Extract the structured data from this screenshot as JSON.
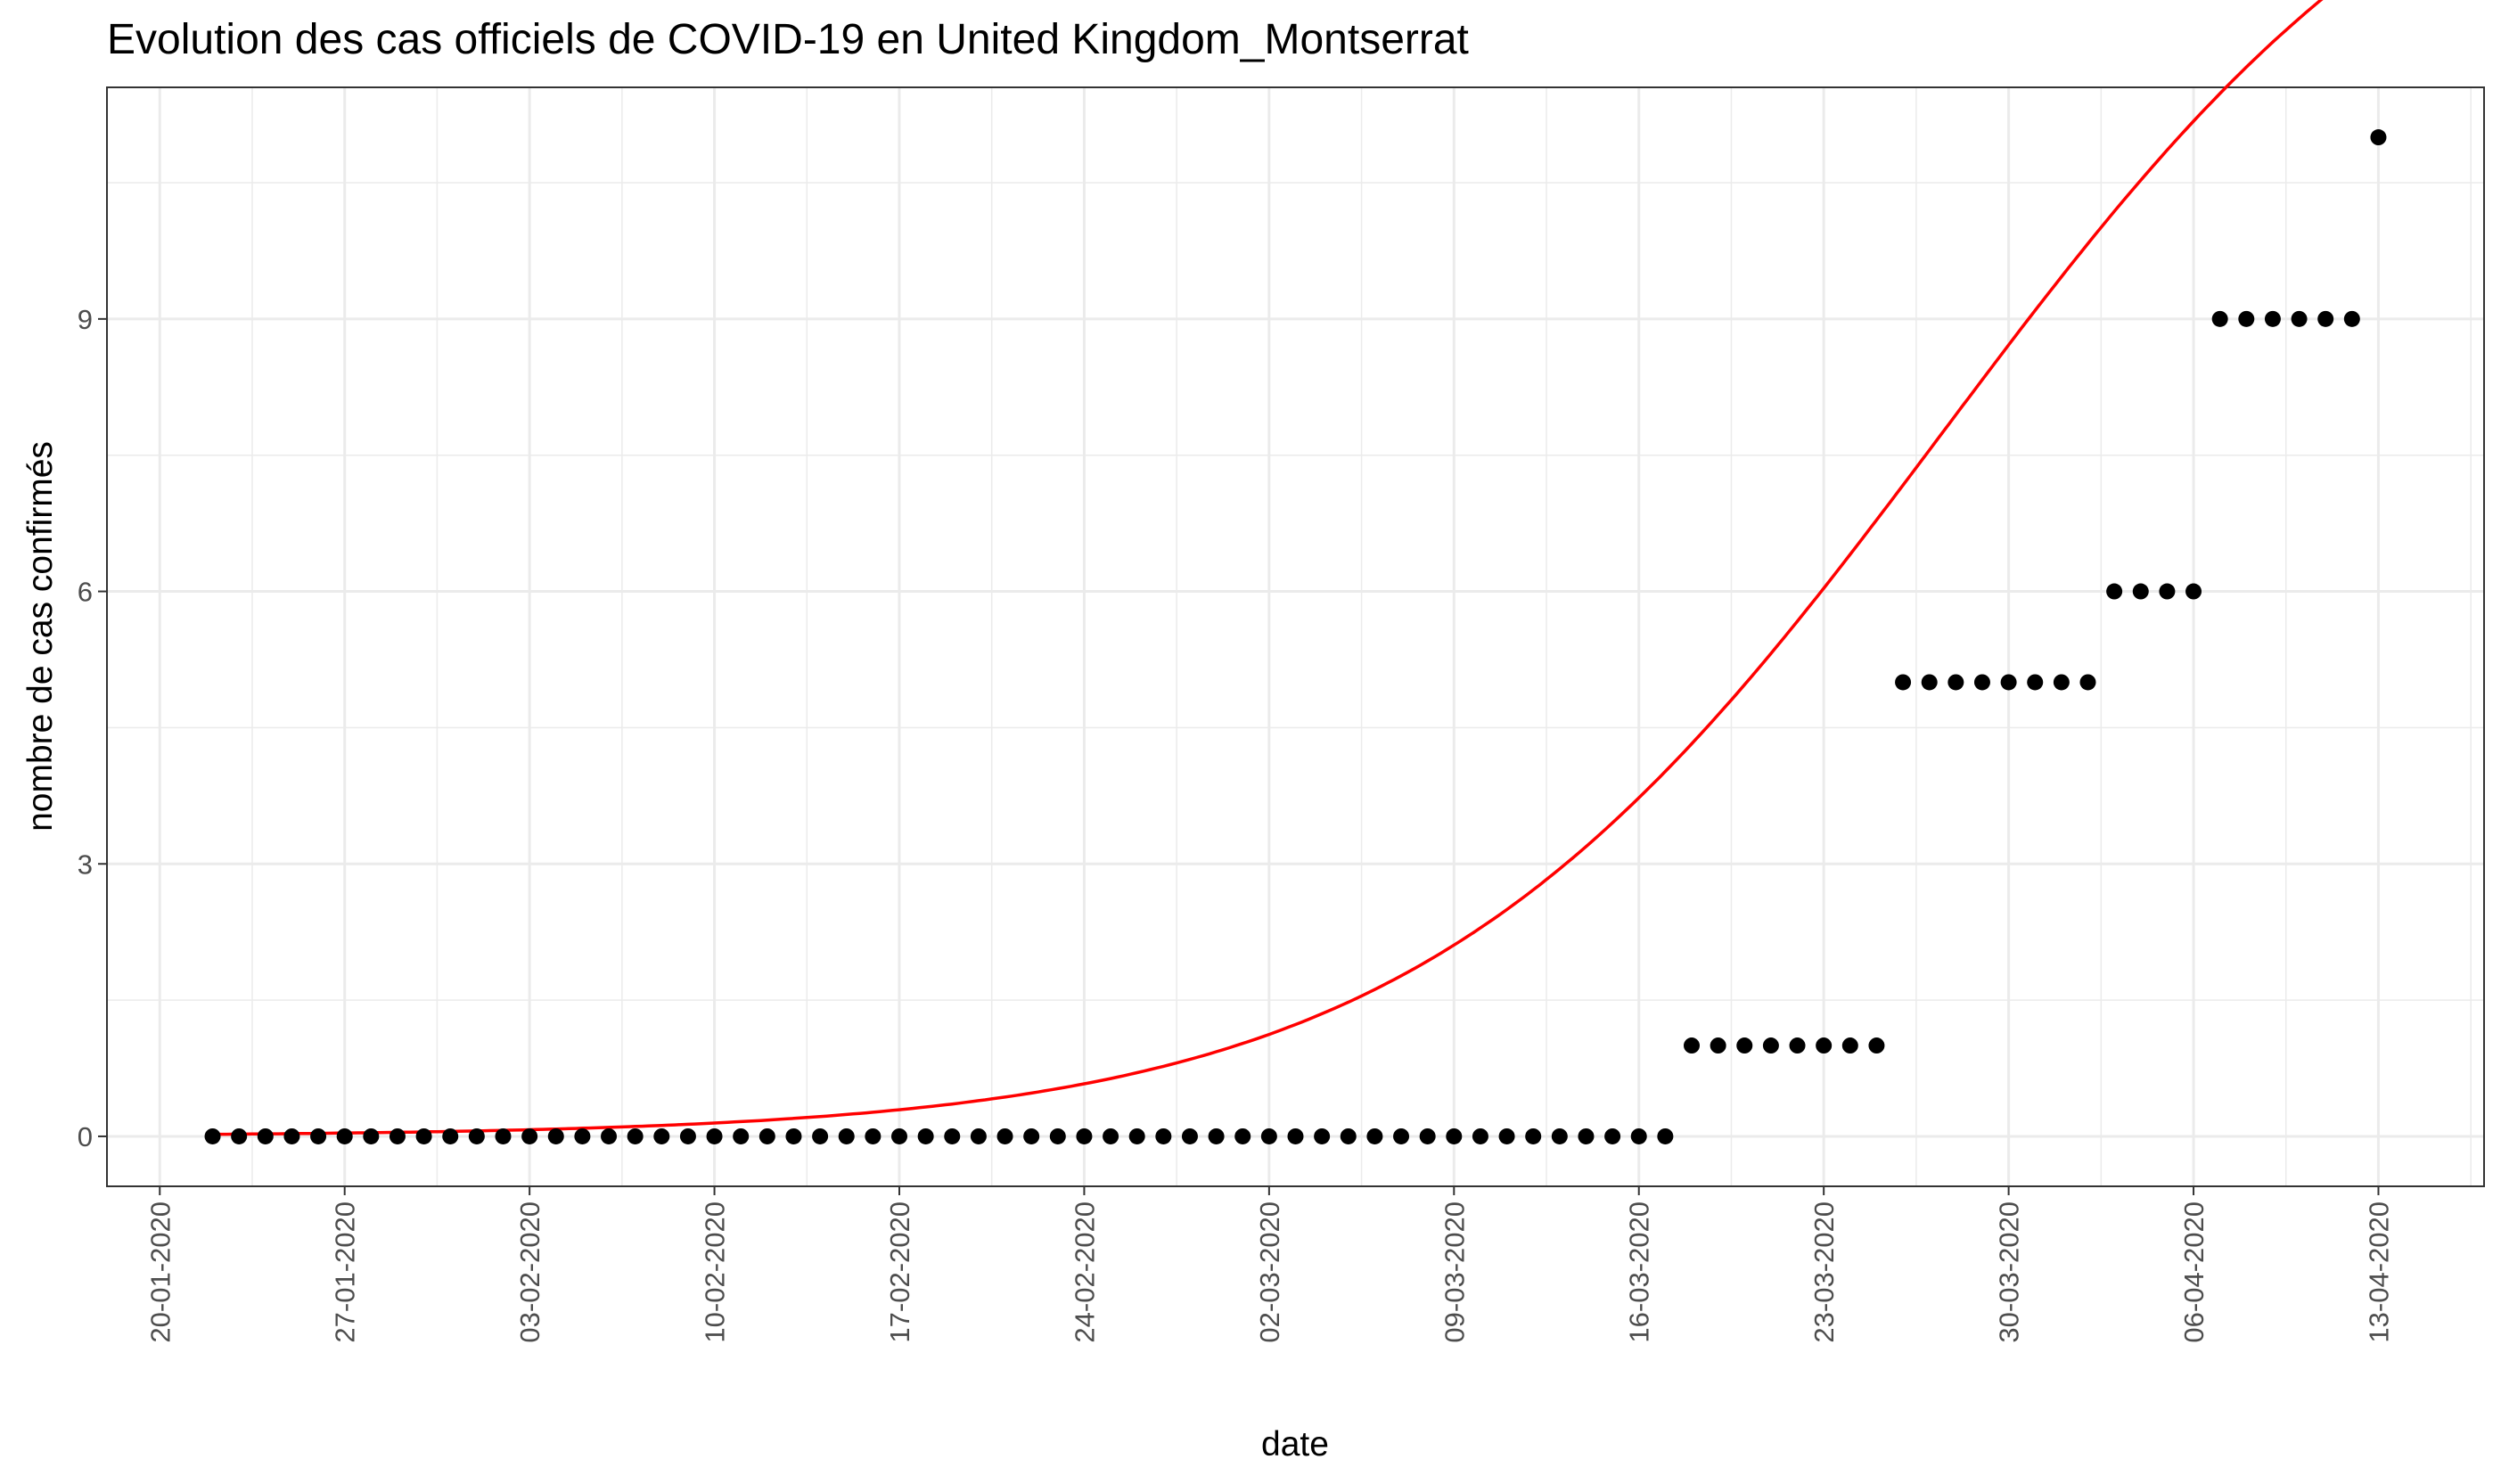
{
  "chart_data": {
    "type": "scatter",
    "title": "Evolution des cas officiels de COVID-19 en United Kingdom_Montserrat",
    "xlabel": "date",
    "ylabel": "nombre de cas confirmés",
    "x_start": "22-01-2020",
    "y_ticks": [
      0,
      3,
      6,
      9
    ],
    "ylim": [
      -0.55,
      11.55
    ],
    "x_ticks": [
      {
        "date": "20-01-2020",
        "label": "20-01-2020"
      },
      {
        "date": "27-01-2020",
        "label": "27-01-2020"
      },
      {
        "date": "03-02-2020",
        "label": "03-02-2020"
      },
      {
        "date": "10-02-2020",
        "label": "10-02-2020"
      },
      {
        "date": "17-02-2020",
        "label": "17-02-2020"
      },
      {
        "date": "24-02-2020",
        "label": "24-02-2020"
      },
      {
        "date": "02-03-2020",
        "label": "02-03-2020"
      },
      {
        "date": "09-03-2020",
        "label": "09-03-2020"
      },
      {
        "date": "16-03-2020",
        "label": "16-03-2020"
      },
      {
        "date": "23-03-2020",
        "label": "23-03-2020"
      },
      {
        "date": "30-03-2020",
        "label": "30-03-2020"
      },
      {
        "date": "06-04-2020",
        "label": "06-04-2020"
      },
      {
        "date": "13-04-2020",
        "label": "13-04-2020"
      }
    ],
    "xlim": [
      "18-01-2020",
      "17-04-2020"
    ],
    "values": [
      0,
      0,
      0,
      0,
      0,
      0,
      0,
      0,
      0,
      0,
      0,
      0,
      0,
      0,
      0,
      0,
      0,
      0,
      0,
      0,
      0,
      0,
      0,
      0,
      0,
      0,
      0,
      0,
      0,
      0,
      0,
      0,
      0,
      0,
      0,
      0,
      0,
      0,
      0,
      0,
      0,
      0,
      0,
      0,
      0,
      0,
      0,
      0,
      0,
      0,
      0,
      0,
      0,
      0,
      0,
      0,
      1,
      1,
      1,
      1,
      1,
      1,
      1,
      1,
      5,
      5,
      5,
      5,
      5,
      5,
      5,
      5,
      6,
      6,
      6,
      6,
      9,
      9,
      9,
      9,
      9,
      9,
      11
    ],
    "fit_color": "#ff0000",
    "point_color": "#000000",
    "grid": true
  }
}
